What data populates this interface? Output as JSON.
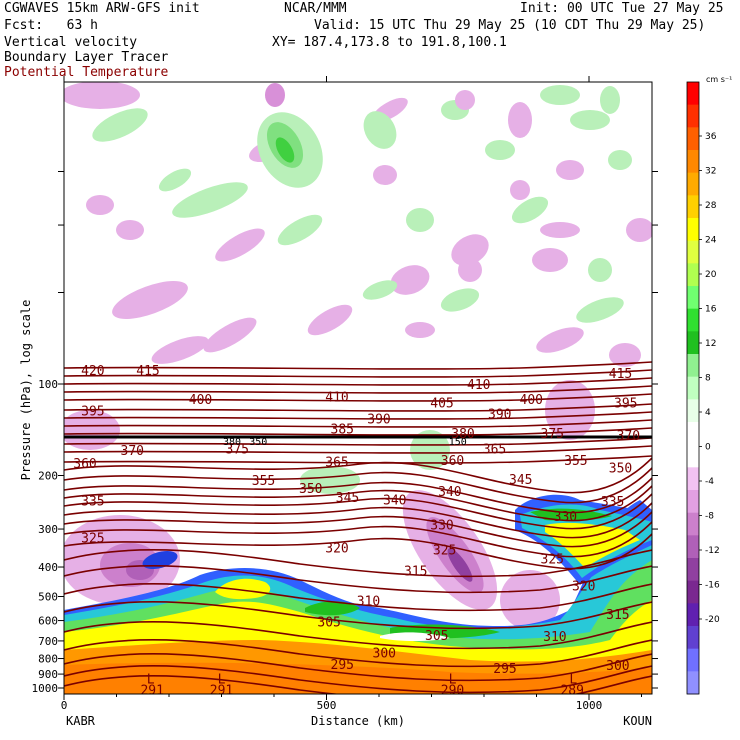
{
  "header": {
    "model_line": "CGWAVES 15km ARW-GFS init",
    "center": "NCAR/MMM",
    "init": "Init: 00 UTC Tue 27 May 25",
    "fcst": "Fcst:   63 h",
    "valid": "Valid: 15 UTC Thu 29 May 25 (10 CDT Thu 29 May 25)",
    "field1": "Vertical velocity",
    "xy": "XY= 187.4,173.8 to 191.8,100.1",
    "field2": "Boundary Layer Tracer",
    "field3": "Potential Temperature"
  },
  "colors": {
    "theta_contour": "#7a0000",
    "tropopause": "#000000"
  },
  "chart_data": {
    "type": "cross-section",
    "xlabel": "Distance (km)",
    "ylabel": "Pressure (hPa), log scale",
    "xlim": [
      0,
      1120
    ],
    "x_ticks": [
      0,
      500,
      1000
    ],
    "y_ticks": [
      100,
      200,
      300,
      400,
      500,
      600,
      700,
      800,
      900,
      1000
    ],
    "y_scale": "log",
    "endpoints": {
      "left": "KABR",
      "right": "KOUN"
    },
    "colorbar": {
      "unit": "cm s⁻¹",
      "labels": [
        "36",
        "32",
        "28",
        "24",
        "20",
        "16",
        "12",
        "8",
        "4",
        "0",
        "-4",
        "-8",
        "-12",
        "-16",
        "-20"
      ],
      "colors": [
        "#ff0000",
        "#ff3000",
        "#ff6000",
        "#ff8800",
        "#ffaa00",
        "#ffd000",
        "#ffff00",
        "#e0ff40",
        "#b0ff50",
        "#70ff70",
        "#30e030",
        "#20c020",
        "#90f090",
        "#c0ffc0",
        "#e8ffe8",
        "#ffffff",
        "#ffffff",
        "#f2c2f2",
        "#e2a0e2",
        "#cc80cc",
        "#b060b8",
        "#9040a0",
        "#7a2890",
        "#6020b0",
        "#6040d0",
        "#7070ff",
        "#9090ff"
      ]
    },
    "theta_labels": [
      {
        "x": 55,
        "p": 90,
        "label": "420"
      },
      {
        "x": 160,
        "p": 90,
        "label": "415"
      },
      {
        "x": 55,
        "p": 122,
        "label": "395"
      },
      {
        "x": 260,
        "p": 112,
        "label": "400"
      },
      {
        "x": 520,
        "p": 110,
        "label": "410"
      },
      {
        "x": 790,
        "p": 100,
        "label": "410"
      },
      {
        "x": 1060,
        "p": 92,
        "label": "415"
      },
      {
        "x": 600,
        "p": 130,
        "label": "390"
      },
      {
        "x": 720,
        "p": 115,
        "label": "405"
      },
      {
        "x": 830,
        "p": 125,
        "label": "390"
      },
      {
        "x": 890,
        "p": 112,
        "label": "400"
      },
      {
        "x": 1070,
        "p": 115,
        "label": "395"
      },
      {
        "x": 130,
        "p": 165,
        "label": "370"
      },
      {
        "x": 330,
        "p": 163,
        "label": "375"
      },
      {
        "x": 530,
        "p": 140,
        "label": "385"
      },
      {
        "x": 760,
        "p": 145,
        "label": "380"
      },
      {
        "x": 930,
        "p": 145,
        "label": "375"
      },
      {
        "x": 1075,
        "p": 147,
        "label": "370"
      },
      {
        "x": 40,
        "p": 182,
        "label": "360"
      },
      {
        "x": 520,
        "p": 180,
        "label": "365"
      },
      {
        "x": 740,
        "p": 178,
        "label": "360"
      },
      {
        "x": 820,
        "p": 163,
        "label": "365"
      },
      {
        "x": 975,
        "p": 178,
        "label": "355"
      },
      {
        "x": 1060,
        "p": 188,
        "label": "350"
      },
      {
        "x": 380,
        "p": 207,
        "label": "355"
      },
      {
        "x": 470,
        "p": 220,
        "label": "350"
      },
      {
        "x": 540,
        "p": 235,
        "label": "345"
      },
      {
        "x": 630,
        "p": 240,
        "label": "340"
      },
      {
        "x": 735,
        "p": 225,
        "label": "340"
      },
      {
        "x": 870,
        "p": 205,
        "label": "345"
      },
      {
        "x": 55,
        "p": 242,
        "label": "335"
      },
      {
        "x": 1045,
        "p": 243,
        "label": "335"
      },
      {
        "x": 720,
        "p": 290,
        "label": "330"
      },
      {
        "x": 955,
        "p": 272,
        "label": "330"
      },
      {
        "x": 55,
        "p": 320,
        "label": "325"
      },
      {
        "x": 520,
        "p": 345,
        "label": "320"
      },
      {
        "x": 725,
        "p": 350,
        "label": "325"
      },
      {
        "x": 930,
        "p": 375,
        "label": "325"
      },
      {
        "x": 670,
        "p": 410,
        "label": "315"
      },
      {
        "x": 990,
        "p": 460,
        "label": "320"
      },
      {
        "x": 580,
        "p": 515,
        "label": "310"
      },
      {
        "x": 1055,
        "p": 570,
        "label": "315"
      },
      {
        "x": 505,
        "p": 605,
        "label": "305"
      },
      {
        "x": 710,
        "p": 670,
        "label": "305"
      },
      {
        "x": 935,
        "p": 675,
        "label": "310"
      },
      {
        "x": 610,
        "p": 765,
        "label": "300"
      },
      {
        "x": 1055,
        "p": 840,
        "label": "300"
      },
      {
        "x": 530,
        "p": 835,
        "label": "295"
      },
      {
        "x": 840,
        "p": 860,
        "label": "295"
      },
      {
        "x": 168,
        "p": 1010,
        "label": "291"
      },
      {
        "x": 300,
        "p": 1010,
        "label": "291"
      },
      {
        "x": 740,
        "p": 1010,
        "label": "290"
      },
      {
        "x": 968,
        "p": 1010,
        "label": "289"
      }
    ],
    "tropopause_labels": [
      {
        "x": 320,
        "p": 155,
        "label": "380"
      },
      {
        "x": 370,
        "p": 155,
        "label": "350"
      },
      {
        "x": 750,
        "p": 155,
        "label": "150"
      }
    ],
    "low_markers": [
      {
        "x": 165,
        "p": 930,
        "label": "L"
      },
      {
        "x": 300,
        "p": 930,
        "label": "L"
      },
      {
        "x": 740,
        "p": 930,
        "label": "L"
      },
      {
        "x": 970,
        "p": 930,
        "label": "L"
      }
    ]
  }
}
